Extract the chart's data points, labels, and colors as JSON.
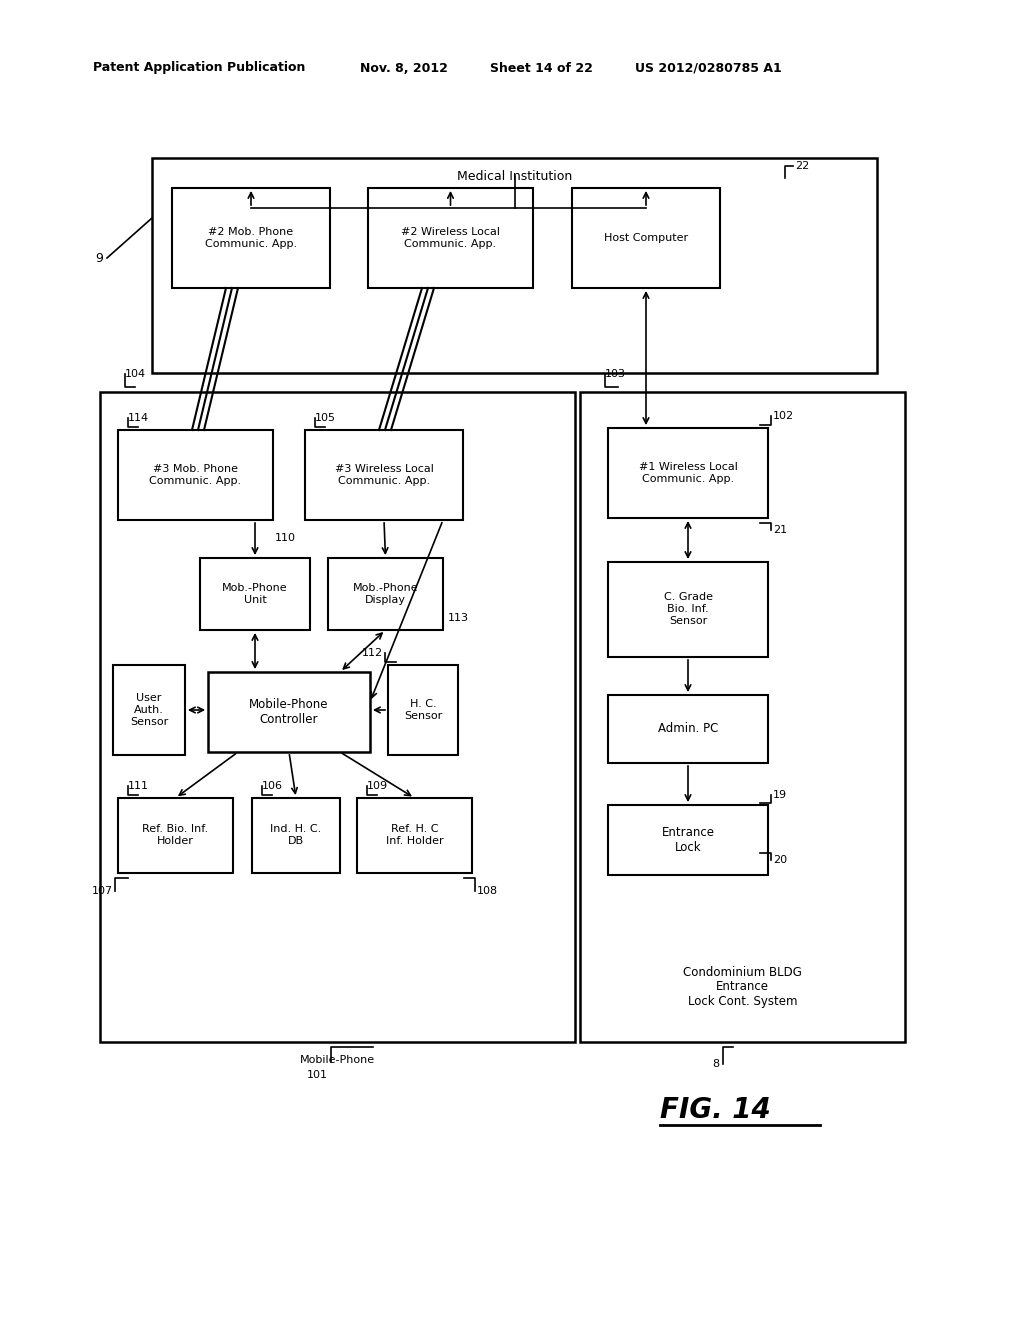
{
  "bg_color": "#ffffff",
  "header_text": "Patent Application Publication",
  "header_date": "Nov. 8, 2012",
  "header_sheet": "Sheet 14 of 22",
  "header_patent": "US 2012/0280785 A1",
  "fig_label": "FIG. 14"
}
